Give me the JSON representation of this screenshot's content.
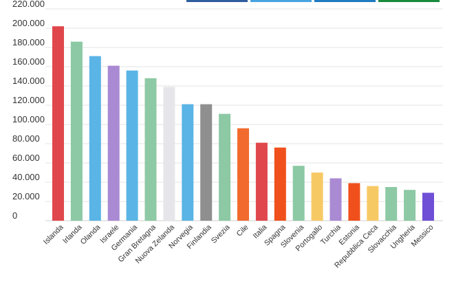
{
  "header_tabs": [
    {
      "color": "#2f5d9e"
    },
    {
      "color": "#4aa3e0"
    },
    {
      "color": "#1f7bc0"
    },
    {
      "color": "#1b8a3c"
    }
  ],
  "chart_data": {
    "type": "bar",
    "title": "",
    "xlabel": "",
    "ylabel": "",
    "ylim": [
      0,
      220000
    ],
    "y_ticks": [
      {
        "value": 0,
        "label": "0"
      },
      {
        "value": 20000,
        "label": "20.000"
      },
      {
        "value": 40000,
        "label": "40.000"
      },
      {
        "value": 60000,
        "label": "60.000"
      },
      {
        "value": 80000,
        "label": "80.000"
      },
      {
        "value": 100000,
        "label": "100.000"
      },
      {
        "value": 120000,
        "label": "120.000"
      },
      {
        "value": 140000,
        "label": "140.000"
      },
      {
        "value": 160000,
        "label": "160.000"
      },
      {
        "value": 180000,
        "label": "180.000"
      },
      {
        "value": 200000,
        "label": "200.000"
      },
      {
        "value": 220000,
        "label": "220.000"
      }
    ],
    "categories": [
      "Islanda",
      "Irlanda",
      "Olanda",
      "Israele",
      "Germania",
      "Gran Bretagna",
      "Nuova Zelanda",
      "Norvegia",
      "Finlandia",
      "Svezia",
      "Cile",
      "Italia",
      "Spagna",
      "Slovenia",
      "Portogallo",
      "Turchia",
      "Estonia",
      "Repubblica Ceca",
      "Slovacchia",
      "Ungheria",
      "Messico"
    ],
    "values": [
      202000,
      186000,
      171000,
      161000,
      156000,
      148000,
      139000,
      121000,
      121000,
      111000,
      96000,
      81000,
      76000,
      57000,
      50000,
      44000,
      39000,
      36000,
      35000,
      32000,
      29000
    ],
    "colors": [
      "#e0474c",
      "#8cc9a4",
      "#5ab4e5",
      "#a98ad3",
      "#5ab4e5",
      "#8cc9a4",
      "#e6e6ea",
      "#5ab4e5",
      "#8f8f8f",
      "#8cc9a4",
      "#f26a2e",
      "#e0474c",
      "#f0501c",
      "#8cc9a4",
      "#f7c965",
      "#a98ad3",
      "#f0501c",
      "#f7c965",
      "#8cc9a4",
      "#8cc9a4",
      "#6e4fd6"
    ],
    "grid": true,
    "legend": "none"
  }
}
